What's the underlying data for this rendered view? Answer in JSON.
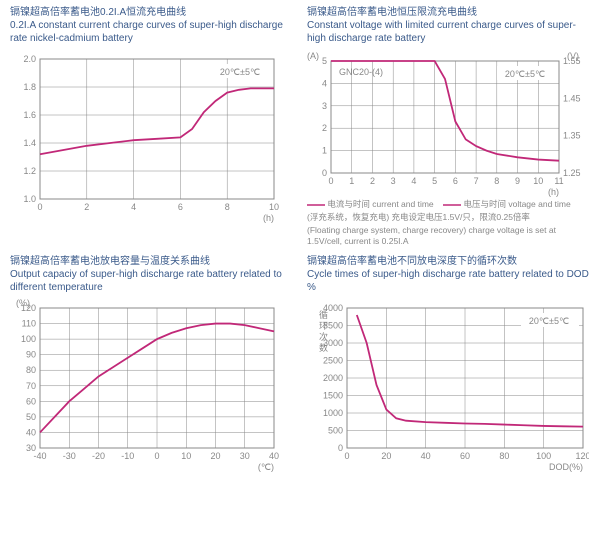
{
  "colors": {
    "text": "#3a5a8a",
    "axis": "#888888",
    "grid": "#888888",
    "series": "#c12878",
    "bg": "#ffffff"
  },
  "panels": {
    "a": {
      "title_cn": "镉镍超高倍率蓄电池0.2I.A恒流充电曲线",
      "title_en": "0.2I.A constant current charge curves of super-high discharge rate nickel-cadmium battery",
      "type": "line",
      "xlim": [
        0,
        10
      ],
      "ylim": [
        1.0,
        2.0
      ],
      "xticks": [
        0,
        2,
        4,
        6,
        8,
        10
      ],
      "yticks": [
        1.0,
        1.2,
        1.4,
        1.6,
        1.8,
        2.0
      ],
      "xlabel": "(h)",
      "annotation": "20℃±5℃",
      "data": {
        "x": [
          0,
          1,
          2,
          3,
          4,
          5,
          6,
          6.5,
          7,
          7.5,
          8,
          8.5,
          9,
          10
        ],
        "y": [
          1.32,
          1.35,
          1.38,
          1.4,
          1.42,
          1.43,
          1.44,
          1.5,
          1.62,
          1.7,
          1.76,
          1.78,
          1.79,
          1.79
        ]
      }
    },
    "b": {
      "title_cn": "镉镍超高倍率蓄电池恒压限流充电曲线",
      "title_en": "Constant voltage with limited current charge curves of super-high discharge rate battery",
      "type": "line",
      "xlim": [
        0,
        11
      ],
      "ylim_left": [
        0,
        5
      ],
      "ylim_right": [
        1.25,
        1.55
      ],
      "xticks": [
        0,
        1,
        2,
        3,
        4,
        5,
        6,
        7,
        8,
        9,
        10,
        11
      ],
      "yticks_left": [
        0,
        1,
        2,
        3,
        4,
        5
      ],
      "yticks_right": [
        1.25,
        1.35,
        1.45,
        1.55
      ],
      "xlabel": "(h)",
      "ylabel_left": "(A)",
      "ylabel_right": "(V)",
      "inside_label": "GNC20-(4)",
      "annotation": "20℃±5℃",
      "series_current": {
        "x": [
          0,
          1,
          2,
          3,
          4,
          5,
          5.5,
          6,
          6.5,
          7,
          7.5,
          8,
          9,
          10,
          11
        ],
        "y": [
          5,
          5,
          5,
          5,
          5,
          5,
          4.2,
          2.3,
          1.5,
          1.2,
          1.0,
          0.85,
          0.7,
          0.6,
          0.55
        ]
      },
      "legend1": "电流与时间 current and time",
      "legend2": "电压与时间 voltage and time",
      "foot_cn": "(浮充系统，恢复充电) 充电设定电压1.5V/只，限流0.25倍率",
      "foot_en": "(Floating charge system, charge recovery) charge voltage is set at 1.5V/cell, current is 0.25I.A"
    },
    "c": {
      "title_cn": "镉镍超高倍率蓄电池放电容量与温度关系曲线",
      "title_en": "Output capaciy of super-high discharge rate battery related to different temperature",
      "type": "line",
      "xlim": [
        -40,
        40
      ],
      "ylim": [
        30,
        120
      ],
      "xticks": [
        -40,
        -30,
        -20,
        -10,
        0,
        10,
        20,
        30,
        40
      ],
      "yticks": [
        30,
        40,
        50,
        60,
        70,
        80,
        90,
        100,
        110,
        120
      ],
      "xlabel": "(℃)",
      "ylabel": "(%)",
      "data": {
        "x": [
          -40,
          -35,
          -30,
          -25,
          -20,
          -15,
          -10,
          -5,
          0,
          5,
          10,
          15,
          20,
          25,
          30,
          35,
          40
        ],
        "y": [
          40,
          50,
          60,
          68,
          76,
          82,
          88,
          94,
          100,
          104,
          107,
          109,
          110,
          110,
          109,
          107,
          105
        ]
      }
    },
    "d": {
      "title_cn": "镉镍超高倍率蓄电池不同放电深度下的循环次数",
      "title_en": "Cycle times of super-high discharge rate battery related to DOD %",
      "type": "line",
      "xlim": [
        0,
        120
      ],
      "ylim": [
        0,
        4000
      ],
      "xticks": [
        0,
        20,
        40,
        60,
        80,
        100,
        120
      ],
      "yticks": [
        0,
        500,
        1000,
        1500,
        2000,
        2500,
        3000,
        3500,
        4000
      ],
      "xlabel": "DOD(%)",
      "ylabel_cn": "循环次数",
      "annotation": "20℃±5℃",
      "data": {
        "x": [
          5,
          10,
          15,
          20,
          25,
          30,
          40,
          50,
          60,
          70,
          80,
          90,
          100,
          110,
          120
        ],
        "y": [
          3800,
          3000,
          1800,
          1100,
          850,
          780,
          740,
          720,
          700,
          690,
          670,
          650,
          630,
          620,
          610
        ]
      }
    }
  }
}
